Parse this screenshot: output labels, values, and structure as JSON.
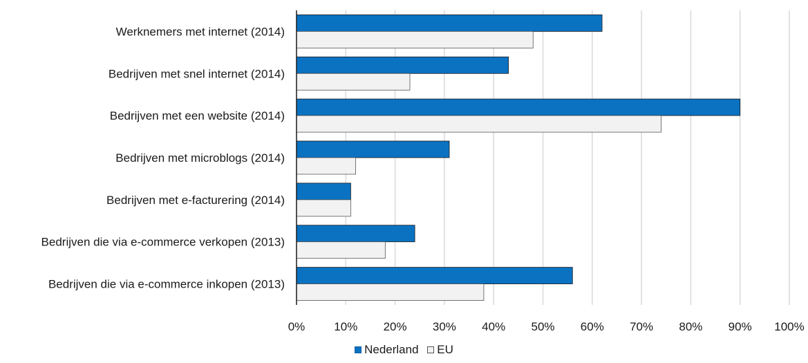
{
  "chart_data": {
    "type": "bar",
    "orientation": "horizontal",
    "categories": [
      "Werknemers met internet (2014)",
      "Bedrijven met snel internet (2014)",
      "Bedrijven met een website (2014)",
      "Bedrijven met microblogs (2014)",
      "Bedrijven met e-facturering (2014)",
      "Bedrijven die via e-commerce verkopen (2013)",
      "Bedrijven die via e-commerce inkopen (2013)"
    ],
    "series": [
      {
        "name": "Nederland",
        "color": "#0b72c2",
        "values": [
          62,
          43,
          90,
          31,
          11,
          24,
          56
        ]
      },
      {
        "name": "EU",
        "color": "#f2f2f2",
        "values": [
          48,
          23,
          74,
          12,
          11,
          18,
          38
        ]
      }
    ],
    "xlim": [
      0,
      100
    ],
    "x_ticks": [
      "0%",
      "10%",
      "20%",
      "30%",
      "40%",
      "50%",
      "60%",
      "70%",
      "80%",
      "90%",
      "100%"
    ],
    "grid": "vertical",
    "legend_position": "bottom-center",
    "title": "",
    "xlabel": "",
    "ylabel": ""
  }
}
